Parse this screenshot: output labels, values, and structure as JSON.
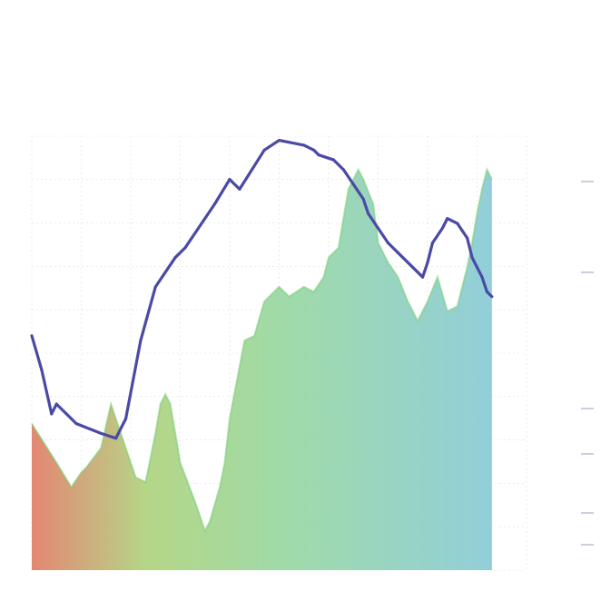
{
  "colors": {
    "area_gradient": [
      "#e0715a",
      "#a8cf72",
      "#8fd49a",
      "#7fc6d3"
    ],
    "line": "#4a4aa6",
    "grid": "#c9d8c9",
    "tick": "#b8bfd4"
  },
  "chart_data": {
    "type": "area",
    "title": "",
    "xlabel": "",
    "ylabel": "",
    "grid": true,
    "legend": "none",
    "xlim": [
      0,
      100
    ],
    "ylim": [
      0,
      100
    ],
    "series": [
      {
        "kind": "area",
        "x": [
          0,
          5,
          8,
          10,
          11,
          14,
          16,
          18,
          20,
          21,
          23,
          25,
          26,
          27,
          28,
          30,
          33,
          35,
          36,
          38,
          39,
          40,
          43,
          45,
          47,
          50,
          52,
          55,
          57,
          59,
          60,
          62,
          63,
          64,
          66,
          67,
          69,
          70,
          71,
          72,
          74,
          76,
          78,
          80,
          82,
          84,
          86,
          88,
          89,
          90,
          91,
          92,
          93
        ],
        "y": [
          30,
          22,
          17,
          20,
          21,
          25,
          34,
          28,
          22,
          19,
          18,
          28,
          34,
          36,
          34,
          22,
          14,
          8,
          10,
          17,
          22,
          31,
          47,
          48,
          55,
          58,
          56,
          58,
          57,
          60,
          64,
          66,
          72,
          78,
          82,
          80,
          75,
          67,
          65,
          63,
          60,
          55,
          51,
          55,
          60,
          53,
          54,
          62,
          67,
          73,
          78,
          82,
          80
        ]
      },
      {
        "kind": "line",
        "x": [
          0,
          2,
          4,
          5,
          9,
          14,
          17,
          19,
          22,
          25,
          29,
          31,
          37,
          40,
          42,
          47,
          50,
          55,
          57,
          58,
          61,
          63,
          65,
          67,
          68,
          70,
          72,
          74,
          76,
          79,
          80,
          81,
          83,
          84,
          86,
          88,
          89,
          90,
          91,
          92,
          93
        ],
        "y": [
          48,
          41,
          32,
          34,
          30,
          28,
          27,
          31,
          47,
          58,
          64,
          66,
          75,
          80,
          78,
          86,
          88,
          87,
          86,
          85,
          84,
          82,
          79,
          76,
          73,
          70,
          67,
          65,
          63,
          60,
          63,
          67,
          70,
          72,
          71,
          68,
          64,
          62,
          60,
          57,
          56
        ]
      }
    ]
  }
}
